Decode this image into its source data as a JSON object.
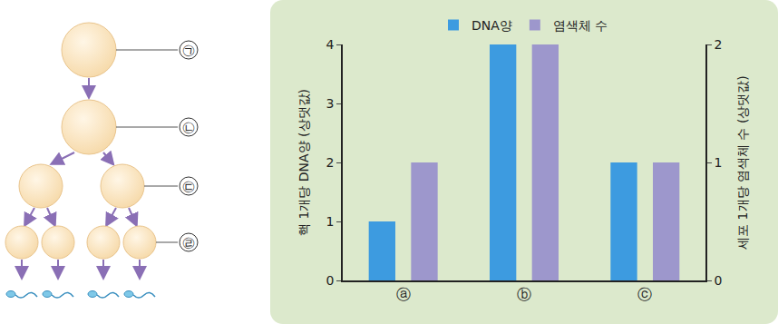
{
  "chart_data": {
    "type": "bar",
    "categories": [
      "ⓐ",
      "ⓑ",
      "ⓒ"
    ],
    "series": [
      {
        "name": "DNA양",
        "color": "#3d9be0",
        "values": [
          1,
          4,
          2
        ]
      },
      {
        "name": "염색체 수",
        "color": "#9d97cc",
        "values": [
          1,
          2,
          1
        ],
        "axis": "y2"
      }
    ],
    "y_label": "핵 1개당 DNA양 (상댓값)",
    "y2_label": "세포 1개당 염색체 수 (상댓값)",
    "ylim": [
      0,
      4
    ],
    "yticks": [
      0,
      1,
      2,
      3,
      4
    ],
    "y2lim": [
      0,
      2
    ],
    "y2ticks": [
      0,
      1,
      2
    ],
    "legend": "top",
    "grid": false
  },
  "diagram": {
    "labels": [
      "㉠",
      "㉡",
      "㉢",
      "㉣"
    ]
  }
}
